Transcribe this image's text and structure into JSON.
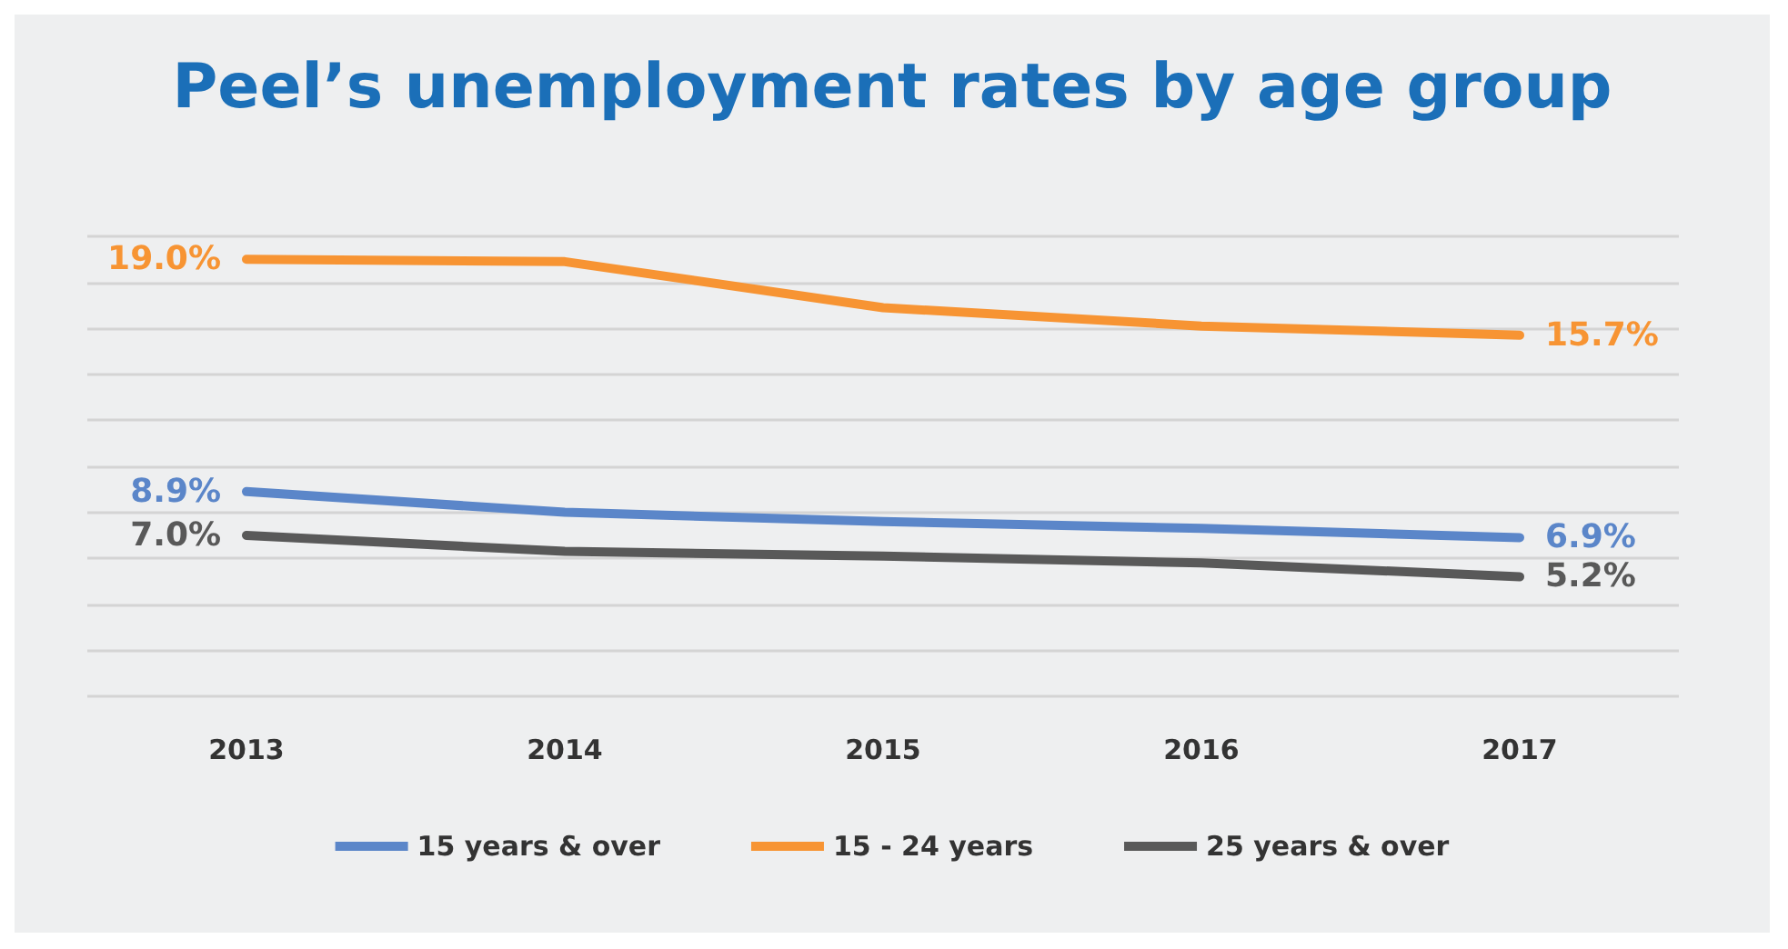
{
  "chart_data": {
    "type": "line",
    "title": "Peel’s unemployment rates by age group",
    "categories": [
      "2013",
      "2014",
      "2015",
      "2016",
      "2017"
    ],
    "series": [
      {
        "name": "15 years & over",
        "color": "#5b86c9",
        "values": [
          8.9,
          8.0,
          7.6,
          7.3,
          6.9
        ],
        "value_labels": [
          "8.9%",
          null,
          null,
          null,
          "6.9%"
        ]
      },
      {
        "name": "15 - 24 years",
        "color": "#f79433",
        "values": [
          19.0,
          18.9,
          16.9,
          16.1,
          15.7
        ],
        "value_labels": [
          "19.0%",
          null,
          null,
          null,
          "15.7%"
        ]
      },
      {
        "name": "25 years & over",
        "color": "#595959",
        "values": [
          7.0,
          6.3,
          6.1,
          5.8,
          5.2
        ],
        "value_labels": [
          "7.0%",
          null,
          null,
          null,
          "5.2%"
        ]
      }
    ],
    "ylim": [
      0,
      20
    ],
    "yticks": [
      {
        "value": 0,
        "label": null
      },
      {
        "value": 2,
        "label": null
      },
      {
        "value": 4,
        "label": null
      },
      {
        "value": 6,
        "label": null
      },
      {
        "value": 8,
        "label": null
      },
      {
        "value": 10,
        "label": null
      },
      {
        "value": 12,
        "label": null
      },
      {
        "value": 14,
        "label": null
      },
      {
        "value": 16,
        "label": null
      },
      {
        "value": 18,
        "label": null
      },
      {
        "value": 20,
        "label": null
      }
    ],
    "tick_labels": "x",
    "grid": "y",
    "legend": "bottom",
    "marker": "none",
    "line_style": "solid"
  }
}
